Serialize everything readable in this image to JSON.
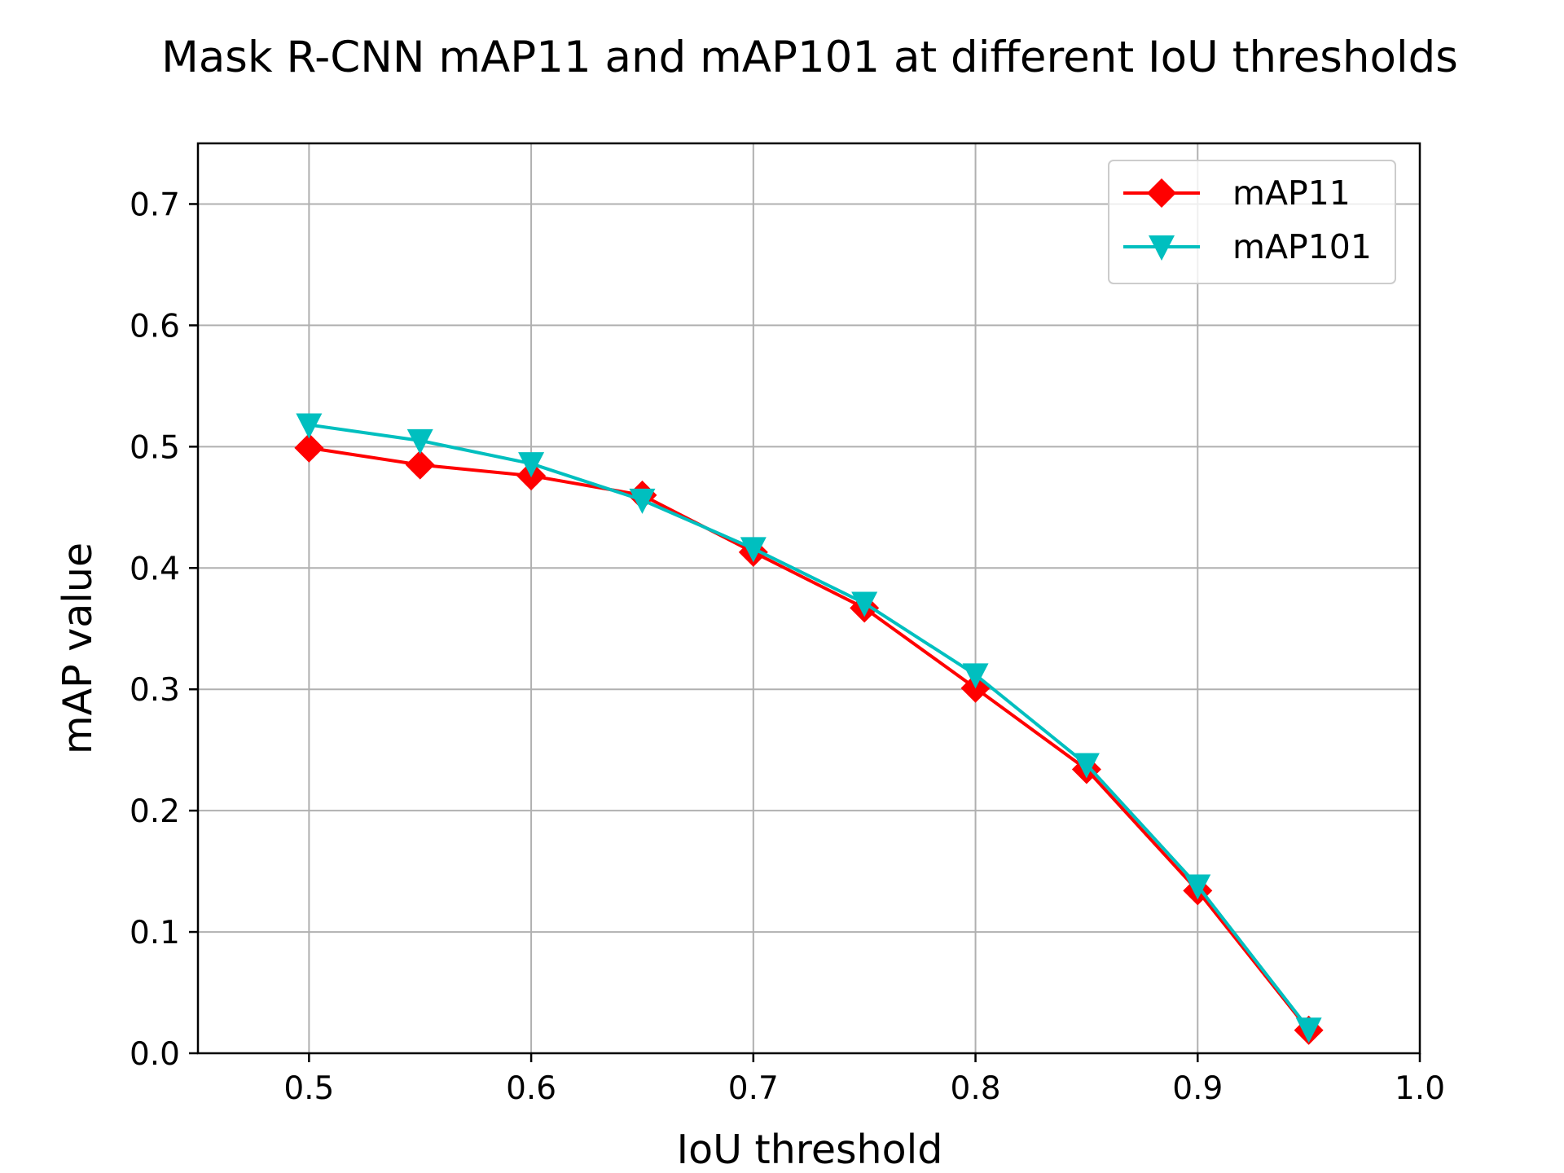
{
  "chart_data": {
    "type": "line",
    "title": "Mask R-CNN mAP11 and mAP101 at different IoU thresholds",
    "xlabel": "IoU threshold",
    "ylabel": "mAP value",
    "xlim": [
      0.45,
      1.0
    ],
    "ylim": [
      0.0,
      0.75
    ],
    "xticks": [
      "0.5",
      "0.6",
      "0.7",
      "0.8",
      "0.9",
      "1.0"
    ],
    "yticks": [
      "0.0",
      "0.1",
      "0.2",
      "0.3",
      "0.4",
      "0.5",
      "0.6",
      "0.7"
    ],
    "grid": true,
    "legend_position": "upper right",
    "x": [
      0.5,
      0.55,
      0.6,
      0.65,
      0.7,
      0.75,
      0.8,
      0.85,
      0.9,
      0.95
    ],
    "series": [
      {
        "name": "mAP11",
        "color": "#ff0000",
        "marker": "diamond",
        "values": [
          0.499,
          0.485,
          0.476,
          0.46,
          0.413,
          0.367,
          0.301,
          0.234,
          0.134,
          0.019
        ]
      },
      {
        "name": "mAP101",
        "color": "#00bfbf",
        "marker": "triangle-down",
        "values": [
          0.518,
          0.505,
          0.486,
          0.456,
          0.416,
          0.371,
          0.312,
          0.238,
          0.138,
          0.02
        ]
      }
    ]
  }
}
